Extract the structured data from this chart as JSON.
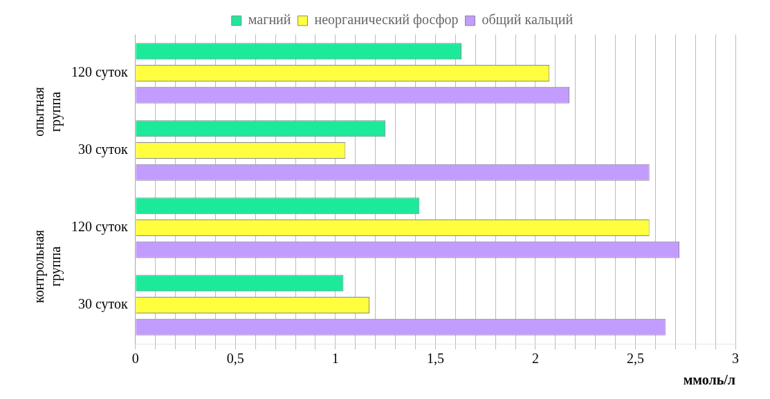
{
  "chart_data": {
    "type": "bar",
    "orientation": "horizontal",
    "categories": [
      "120 суток",
      "30 суток",
      "120 суток",
      "30 суток"
    ],
    "series": [
      {
        "name": "магний",
        "color": "#1de99b",
        "values": [
          1.63,
          1.25,
          1.42,
          1.04
        ]
      },
      {
        "name": "неорганический фосфор",
        "color": "#ffff40",
        "values": [
          2.07,
          1.05,
          2.57,
          1.17
        ]
      },
      {
        "name": "общий кальций",
        "color": "#c39cff",
        "values": [
          2.17,
          2.57,
          2.72,
          2.65
        ]
      }
    ],
    "xlim": [
      0,
      3
    ],
    "xticks": [
      0,
      {
        "value": 0.1,
        "label": null
      },
      {
        "value": 0.2,
        "label": null
      },
      {
        "value": 0.3,
        "label": null
      },
      {
        "value": 0.4,
        "label": null
      },
      {
        "value": 0.5,
        "label": "0,5"
      },
      {
        "value": 0.6,
        "label": null
      },
      {
        "value": 0.7,
        "label": null
      },
      {
        "value": 0.8,
        "label": null
      },
      {
        "value": 0.9,
        "label": null
      },
      1,
      {
        "value": 1.1,
        "label": null
      },
      {
        "value": 1.2,
        "label": null
      },
      {
        "value": 1.3,
        "label": null
      },
      {
        "value": 1.4,
        "label": null
      },
      {
        "value": 1.5,
        "label": "1,5"
      },
      {
        "value": 1.6,
        "label": null
      },
      {
        "value": 1.7,
        "label": null
      },
      {
        "value": 1.8,
        "label": null
      },
      {
        "value": 1.9,
        "label": null
      },
      2,
      {
        "value": 2.1,
        "label": null
      },
      {
        "value": 2.2,
        "label": null
      },
      {
        "value": 2.3,
        "label": null
      },
      {
        "value": 2.4,
        "label": null
      },
      {
        "value": 2.5,
        "label": "2,5"
      },
      {
        "value": 2.6,
        "label": null
      },
      {
        "value": 2.7,
        "label": null
      },
      {
        "value": 2.8,
        "label": null
      },
      {
        "value": 2.9,
        "label": null
      },
      3
    ],
    "xlabel": "ммоль/л",
    "grid": "x",
    "legend": "top",
    "annotations": [
      "опытная группа",
      "контрольная группа"
    ]
  }
}
